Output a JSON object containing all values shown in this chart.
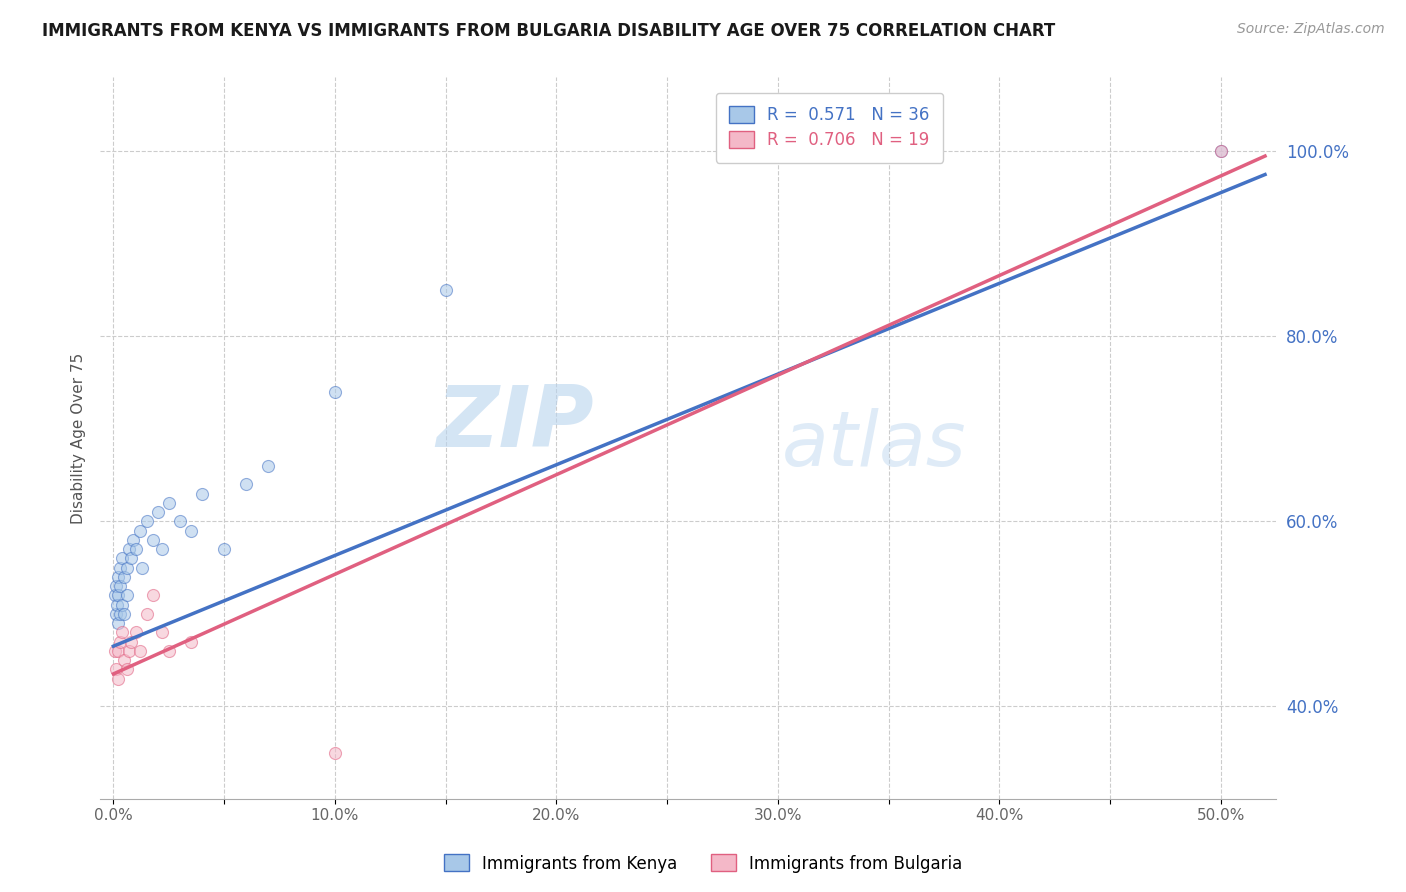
{
  "title": "IMMIGRANTS FROM KENYA VS IMMIGRANTS FROM BULGARIA DISABILITY AGE OVER 75 CORRELATION CHART",
  "source": "Source: ZipAtlas.com",
  "ylabel": "Disability Age Over 75",
  "legend_label1": "Immigrants from Kenya",
  "legend_label2": "Immigrants from Bulgaria",
  "r1": "0.571",
  "n1": "36",
  "r2": "0.706",
  "n2": "19",
  "color_kenya": "#a8c8e8",
  "color_bulgaria": "#f4b8c8",
  "line_color_kenya": "#4472c4",
  "line_color_bulgaria": "#e06080",
  "watermark_zip": "ZIP",
  "watermark_atlas": "atlas",
  "xlim_min": -0.006,
  "xlim_max": 0.525,
  "ylim_min": 0.3,
  "ylim_max": 1.08,
  "xticks": [
    0.0,
    0.05,
    0.1,
    0.15,
    0.2,
    0.25,
    0.3,
    0.35,
    0.4,
    0.45,
    0.5
  ],
  "yticks": [
    0.4,
    0.6,
    0.8,
    1.0
  ],
  "xticklabels_major": [
    "0.0%",
    "",
    "10.0%",
    "",
    "20.0%",
    "",
    "30.0%",
    "",
    "40.0%",
    "",
    "50.0%"
  ],
  "grid_color": "#cccccc",
  "bg_color": "#ffffff",
  "title_color": "#1a1a1a",
  "right_axis_color": "#4472c4",
  "kenya_x": [
    0.0005,
    0.001,
    0.001,
    0.0015,
    0.002,
    0.002,
    0.002,
    0.003,
    0.003,
    0.003,
    0.004,
    0.004,
    0.005,
    0.005,
    0.006,
    0.006,
    0.007,
    0.008,
    0.009,
    0.01,
    0.012,
    0.013,
    0.015,
    0.018,
    0.02,
    0.022,
    0.025,
    0.03,
    0.035,
    0.04,
    0.05,
    0.06,
    0.07,
    0.1,
    0.15,
    0.5
  ],
  "kenya_y": [
    0.52,
    0.5,
    0.53,
    0.51,
    0.54,
    0.49,
    0.52,
    0.55,
    0.5,
    0.53,
    0.56,
    0.51,
    0.54,
    0.5,
    0.55,
    0.52,
    0.57,
    0.56,
    0.58,
    0.57,
    0.59,
    0.55,
    0.6,
    0.58,
    0.61,
    0.57,
    0.62,
    0.6,
    0.59,
    0.63,
    0.57,
    0.64,
    0.66,
    0.74,
    0.85,
    1.0
  ],
  "bulgaria_x": [
    0.0005,
    0.001,
    0.002,
    0.002,
    0.003,
    0.004,
    0.005,
    0.006,
    0.007,
    0.008,
    0.01,
    0.012,
    0.015,
    0.018,
    0.022,
    0.025,
    0.035,
    0.1,
    0.5
  ],
  "bulgaria_y": [
    0.46,
    0.44,
    0.46,
    0.43,
    0.47,
    0.48,
    0.45,
    0.44,
    0.46,
    0.47,
    0.48,
    0.46,
    0.5,
    0.52,
    0.48,
    0.46,
    0.47,
    0.35,
    1.0
  ],
  "kenya_line_x0": 0.0,
  "kenya_line_y0": 0.465,
  "kenya_line_x1": 0.52,
  "kenya_line_y1": 0.975,
  "bulgaria_line_x0": 0.0,
  "bulgaria_line_y0": 0.435,
  "bulgaria_line_x1": 0.52,
  "bulgaria_line_y1": 0.995,
  "marker_size": 75,
  "marker_alpha": 0.55,
  "title_fontsize": 12,
  "axis_label_fontsize": 11,
  "tick_fontsize": 11,
  "legend_fontsize": 12,
  "source_fontsize": 10
}
